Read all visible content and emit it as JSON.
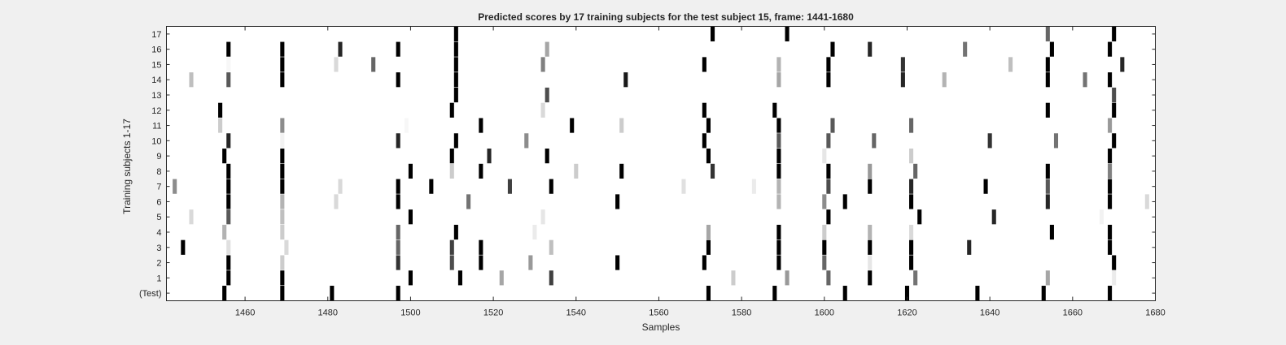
{
  "chart_data": {
    "type": "heatmap",
    "title": "Predicted scores by 17 training subjects for the test subject 15, frame: 1441-1680",
    "xlabel": "Samples",
    "ylabel": "Training subjects 1-17",
    "xlim": [
      1441,
      1680
    ],
    "xticks": [
      1460,
      1480,
      1500,
      1520,
      1540,
      1560,
      1580,
      1600,
      1620,
      1640,
      1660,
      1680
    ],
    "row_labels": [
      "(Test)",
      "1",
      "2",
      "3",
      "4",
      "5",
      "6",
      "7",
      "8",
      "9",
      "10",
      "11",
      "12",
      "13",
      "14",
      "15",
      "16",
      "17"
    ],
    "colormap": "gray-reversed (white = 0, black = 1)",
    "grid": false,
    "rows": [
      {
        "label": "(Test)",
        "cells": [
          [
            1455,
            1.0
          ],
          [
            1469,
            1.0
          ],
          [
            1481,
            1.0
          ],
          [
            1497,
            1.0
          ],
          [
            1572,
            1.0
          ],
          [
            1588,
            1.0
          ],
          [
            1605,
            1.0
          ],
          [
            1620,
            1.0
          ],
          [
            1637,
            1.0
          ],
          [
            1653,
            1.0
          ],
          [
            1669,
            1.0
          ]
        ]
      },
      {
        "label": "1",
        "cells": [
          [
            1456,
            1.0
          ],
          [
            1469,
            1.0
          ],
          [
            1500,
            1.0
          ],
          [
            1512,
            1.0
          ],
          [
            1522,
            0.35
          ],
          [
            1534,
            0.75
          ],
          [
            1578,
            0.2
          ],
          [
            1591,
            0.4
          ],
          [
            1601,
            0.6
          ],
          [
            1611,
            1.0
          ],
          [
            1622,
            0.55
          ],
          [
            1654,
            0.35
          ],
          [
            1670,
            0.08
          ]
        ]
      },
      {
        "label": "2",
        "cells": [
          [
            1456,
            1.0
          ],
          [
            1469,
            0.2
          ],
          [
            1497,
            0.8
          ],
          [
            1510,
            0.7
          ],
          [
            1517,
            1.0
          ],
          [
            1529,
            0.4
          ],
          [
            1550,
            1.0
          ],
          [
            1571,
            1.0
          ],
          [
            1589,
            1.0
          ],
          [
            1600,
            0.6
          ],
          [
            1611,
            0.1
          ],
          [
            1621,
            1.0
          ],
          [
            1670,
            1.0
          ]
        ]
      },
      {
        "label": "3",
        "cells": [
          [
            1445,
            1.0
          ],
          [
            1456,
            0.12
          ],
          [
            1470,
            0.15
          ],
          [
            1497,
            0.6
          ],
          [
            1510,
            0.75
          ],
          [
            1517,
            1.0
          ],
          [
            1534,
            0.25
          ],
          [
            1572,
            1.0
          ],
          [
            1589,
            1.0
          ],
          [
            1600,
            1.0
          ],
          [
            1611,
            1.0
          ],
          [
            1621,
            1.0
          ],
          [
            1635,
            0.85
          ],
          [
            1669,
            1.0
          ]
        ]
      },
      {
        "label": "4",
        "cells": [
          [
            1455,
            0.3
          ],
          [
            1469,
            0.2
          ],
          [
            1497,
            0.6
          ],
          [
            1511,
            1.0
          ],
          [
            1530,
            0.08
          ],
          [
            1572,
            0.35
          ],
          [
            1589,
            1.0
          ],
          [
            1600,
            0.2
          ],
          [
            1611,
            0.3
          ],
          [
            1621,
            0.15
          ],
          [
            1655,
            1.0
          ],
          [
            1669,
            1.0
          ]
        ]
      },
      {
        "label": "5",
        "cells": [
          [
            1447,
            0.15
          ],
          [
            1456,
            0.65
          ],
          [
            1469,
            0.25
          ],
          [
            1500,
            1.0
          ],
          [
            1532,
            0.1
          ],
          [
            1601,
            1.0
          ],
          [
            1623,
            1.0
          ],
          [
            1641,
            0.85
          ],
          [
            1667,
            0.05
          ]
        ]
      },
      {
        "label": "6",
        "cells": [
          [
            1456,
            1.0
          ],
          [
            1469,
            0.3
          ],
          [
            1482,
            0.15
          ],
          [
            1497,
            1.0
          ],
          [
            1514,
            0.55
          ],
          [
            1550,
            1.0
          ],
          [
            1589,
            0.3
          ],
          [
            1600,
            0.45
          ],
          [
            1605,
            1.0
          ],
          [
            1621,
            1.0
          ],
          [
            1654,
            0.85
          ],
          [
            1669,
            1.0
          ],
          [
            1678,
            0.15
          ]
        ]
      },
      {
        "label": "7",
        "cells": [
          [
            1443,
            0.45
          ],
          [
            1456,
            1.0
          ],
          [
            1469,
            1.0
          ],
          [
            1483,
            0.15
          ],
          [
            1497,
            1.0
          ],
          [
            1505,
            1.0
          ],
          [
            1524,
            0.75
          ],
          [
            1534,
            1.0
          ],
          [
            1566,
            0.12
          ],
          [
            1583,
            0.08
          ],
          [
            1589,
            0.3
          ],
          [
            1601,
            0.7
          ],
          [
            1611,
            1.0
          ],
          [
            1621,
            0.85
          ],
          [
            1639,
            1.0
          ],
          [
            1654,
            0.65
          ],
          [
            1669,
            1.0
          ]
        ]
      },
      {
        "label": "8",
        "cells": [
          [
            1456,
            1.0
          ],
          [
            1469,
            1.0
          ],
          [
            1500,
            1.0
          ],
          [
            1510,
            0.2
          ],
          [
            1517,
            1.0
          ],
          [
            1540,
            0.2
          ],
          [
            1551,
            1.0
          ],
          [
            1573,
            0.8
          ],
          [
            1589,
            1.0
          ],
          [
            1601,
            1.0
          ],
          [
            1611,
            0.4
          ],
          [
            1622,
            0.6
          ],
          [
            1654,
            1.0
          ],
          [
            1669,
            0.5
          ]
        ]
      },
      {
        "label": "9",
        "cells": [
          [
            1455,
            1.0
          ],
          [
            1469,
            1.0
          ],
          [
            1510,
            1.0
          ],
          [
            1519,
            0.85
          ],
          [
            1533,
            1.0
          ],
          [
            1572,
            1.0
          ],
          [
            1589,
            1.0
          ],
          [
            1600,
            0.1
          ],
          [
            1621,
            0.2
          ],
          [
            1669,
            1.0
          ]
        ]
      },
      {
        "label": "10",
        "cells": [
          [
            1456,
            0.85
          ],
          [
            1469,
            0.05
          ],
          [
            1497,
            0.85
          ],
          [
            1511,
            1.0
          ],
          [
            1528,
            0.45
          ],
          [
            1571,
            1.0
          ],
          [
            1589,
            0.65
          ],
          [
            1601,
            0.65
          ],
          [
            1612,
            0.6
          ],
          [
            1640,
            0.8
          ],
          [
            1656,
            0.55
          ],
          [
            1670,
            1.0
          ]
        ]
      },
      {
        "label": "11",
        "cells": [
          [
            1454,
            0.2
          ],
          [
            1469,
            0.45
          ],
          [
            1499,
            0.03
          ],
          [
            1517,
            1.0
          ],
          [
            1539,
            1.0
          ],
          [
            1551,
            0.2
          ],
          [
            1572,
            1.0
          ],
          [
            1589,
            1.0
          ],
          [
            1602,
            0.65
          ],
          [
            1621,
            0.6
          ],
          [
            1669,
            0.4
          ]
        ]
      },
      {
        "label": "12",
        "cells": [
          [
            1454,
            1.0
          ],
          [
            1510,
            1.0
          ],
          [
            1532,
            0.15
          ],
          [
            1571,
            1.0
          ],
          [
            1588,
            1.0
          ],
          [
            1654,
            1.0
          ],
          [
            1670,
            1.0
          ]
        ]
      },
      {
        "label": "13",
        "cells": [
          [
            1511,
            1.0
          ],
          [
            1533,
            0.7
          ],
          [
            1670,
            0.7
          ]
        ]
      },
      {
        "label": "14",
        "cells": [
          [
            1447,
            0.25
          ],
          [
            1456,
            0.65
          ],
          [
            1469,
            1.0
          ],
          [
            1497,
            1.0
          ],
          [
            1511,
            1.0
          ],
          [
            1552,
            0.9
          ],
          [
            1589,
            0.35
          ],
          [
            1601,
            1.0
          ],
          [
            1619,
            0.85
          ],
          [
            1629,
            0.3
          ],
          [
            1654,
            1.0
          ],
          [
            1663,
            0.55
          ],
          [
            1669,
            1.0
          ]
        ]
      },
      {
        "label": "15",
        "cells": [
          [
            1456,
            0.03
          ],
          [
            1469,
            1.0
          ],
          [
            1482,
            0.15
          ],
          [
            1491,
            0.6
          ],
          [
            1511,
            1.0
          ],
          [
            1532,
            0.5
          ],
          [
            1571,
            1.0
          ],
          [
            1589,
            0.3
          ],
          [
            1601,
            1.0
          ],
          [
            1619,
            0.8
          ],
          [
            1645,
            0.25
          ],
          [
            1654,
            1.0
          ],
          [
            1672,
            0.85
          ]
        ]
      },
      {
        "label": "16",
        "cells": [
          [
            1456,
            1.0
          ],
          [
            1469,
            1.0
          ],
          [
            1483,
            0.85
          ],
          [
            1497,
            1.0
          ],
          [
            1511,
            1.0
          ],
          [
            1533,
            0.35
          ],
          [
            1602,
            1.0
          ],
          [
            1611,
            0.85
          ],
          [
            1634,
            0.55
          ],
          [
            1655,
            1.0
          ],
          [
            1669,
            1.0
          ]
        ]
      },
      {
        "label": "17",
        "cells": [
          [
            1511,
            1.0
          ],
          [
            1573,
            1.0
          ],
          [
            1591,
            1.0
          ],
          [
            1654,
            0.6
          ],
          [
            1670,
            1.0
          ]
        ]
      }
    ]
  }
}
